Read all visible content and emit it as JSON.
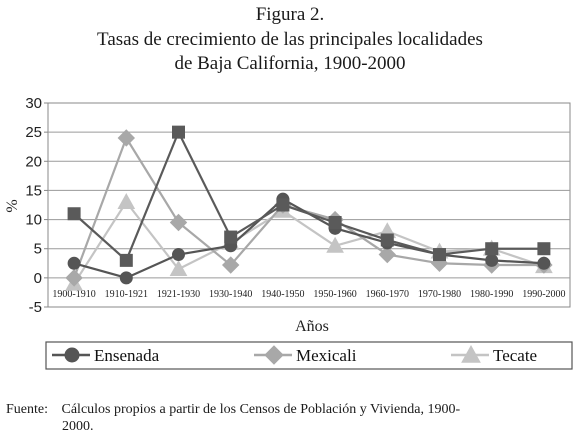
{
  "figure": {
    "title_line1": "Figura 2.",
    "title_line2": "Tasas de crecimiento de las principales localidades",
    "title_line3": "de Baja California, 1900-2000"
  },
  "source": {
    "label": "Fuente:",
    "text_line1": "Cálculos propios a partir de los Censos de Población y Vivienda, 1900-",
    "text_line2": "2000."
  },
  "chart_data": {
    "type": "line",
    "title": "",
    "xlabel": "Años",
    "ylabel": "%",
    "ylim": [
      -5,
      30
    ],
    "yticks": [
      -5,
      0,
      5,
      10,
      15,
      20,
      25,
      30
    ],
    "categories": [
      "1900-1910",
      "1910-1921",
      "1921-1930",
      "1930-1940",
      "1940-1950",
      "1950-1960",
      "1960-1970",
      "1970-1980",
      "1980-1990",
      "1990-2000"
    ],
    "legend_position": "bottom",
    "series": [
      {
        "name": "Ensenada",
        "marker": "circle",
        "color": "#555555",
        "values": [
          2.5,
          0.0,
          4.0,
          5.5,
          13.5,
          8.5,
          6.0,
          4.0,
          3.0,
          2.5
        ]
      },
      {
        "name": "Mexicali",
        "marker": "diamond",
        "color": "#a8a8a8",
        "values": [
          0.0,
          24.0,
          9.5,
          2.2,
          12.5,
          10.0,
          4.0,
          2.5,
          2.2,
          2.2
        ]
      },
      {
        "name": "Tecate",
        "marker": "triangle",
        "color": "#c4c4c4",
        "values": [
          -1.0,
          13.0,
          1.5,
          6.0,
          11.5,
          5.5,
          8.0,
          4.5,
          5.0,
          2.0
        ]
      },
      {
        "name": "",
        "marker": "square",
        "color": "#5a5a5a",
        "values": [
          11.0,
          3.0,
          25.0,
          7.0,
          12.5,
          9.5,
          6.5,
          4.0,
          5.0,
          5.0
        ]
      }
    ]
  }
}
